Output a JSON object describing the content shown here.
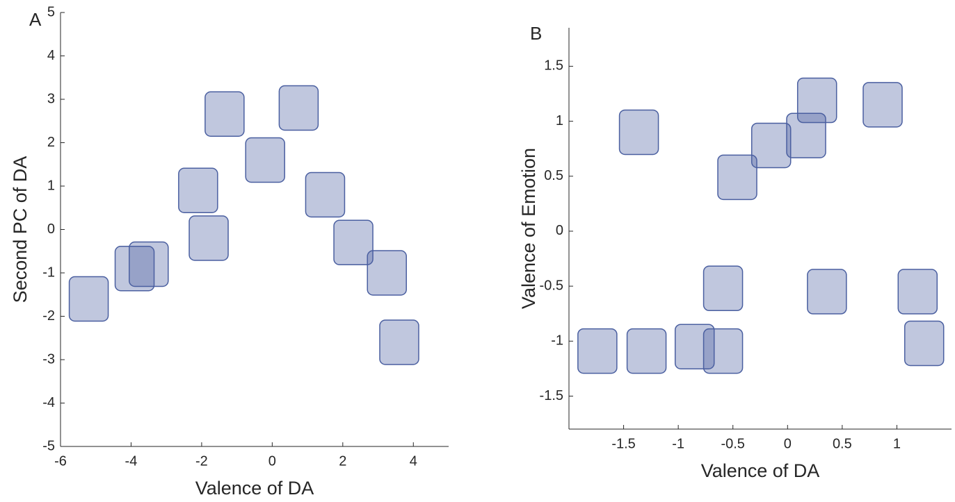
{
  "chart_data": [
    {
      "type": "scatter",
      "panel_label": "A",
      "x_label": "Valence of DA",
      "y_label": "Second PC of DA",
      "x": [
        -5.2,
        -3.9,
        -3.5,
        -2.1,
        -1.8,
        -1.35,
        -0.2,
        0.75,
        1.5,
        2.3,
        3.25,
        3.6
      ],
      "y": [
        -1.6,
        -0.9,
        -0.8,
        0.9,
        -0.2,
        2.66,
        1.6,
        2.8,
        0.8,
        -0.3,
        -1.0,
        -2.6
      ],
      "xlim": [
        -6,
        5
      ],
      "ylim": [
        -5,
        5
      ],
      "xticks": [
        -6,
        -4,
        -2,
        0,
        2,
        4
      ],
      "yticks": [
        -5,
        -4,
        -3,
        -2,
        -1,
        0,
        1,
        2,
        3,
        4,
        5
      ],
      "color": "#4a5fa0"
    },
    {
      "type": "scatter",
      "panel_label": "B",
      "x_label": "Valence of DA",
      "y_label": "Valence of Emotion",
      "x": [
        -1.36,
        -0.46,
        -0.15,
        0.17,
        0.27,
        0.87,
        -0.59,
        0.36,
        1.19,
        -1.74,
        -1.29,
        -0.85,
        -0.59,
        1.25
      ],
      "y": [
        0.9,
        0.49,
        0.78,
        0.87,
        1.19,
        1.15,
        -0.52,
        -0.55,
        -0.55,
        -1.09,
        -1.09,
        -1.05,
        -1.09,
        -1.02
      ],
      "xlim": [
        -2,
        1.5
      ],
      "ylim": [
        -1.8,
        1.85
      ],
      "xticks": [
        -1.5,
        -1,
        -0.5,
        0,
        0.5,
        1
      ],
      "yticks": [
        -1.5,
        -1,
        -0.5,
        0,
        0.5,
        1,
        1.5
      ],
      "color": "#4a5fa0"
    }
  ]
}
